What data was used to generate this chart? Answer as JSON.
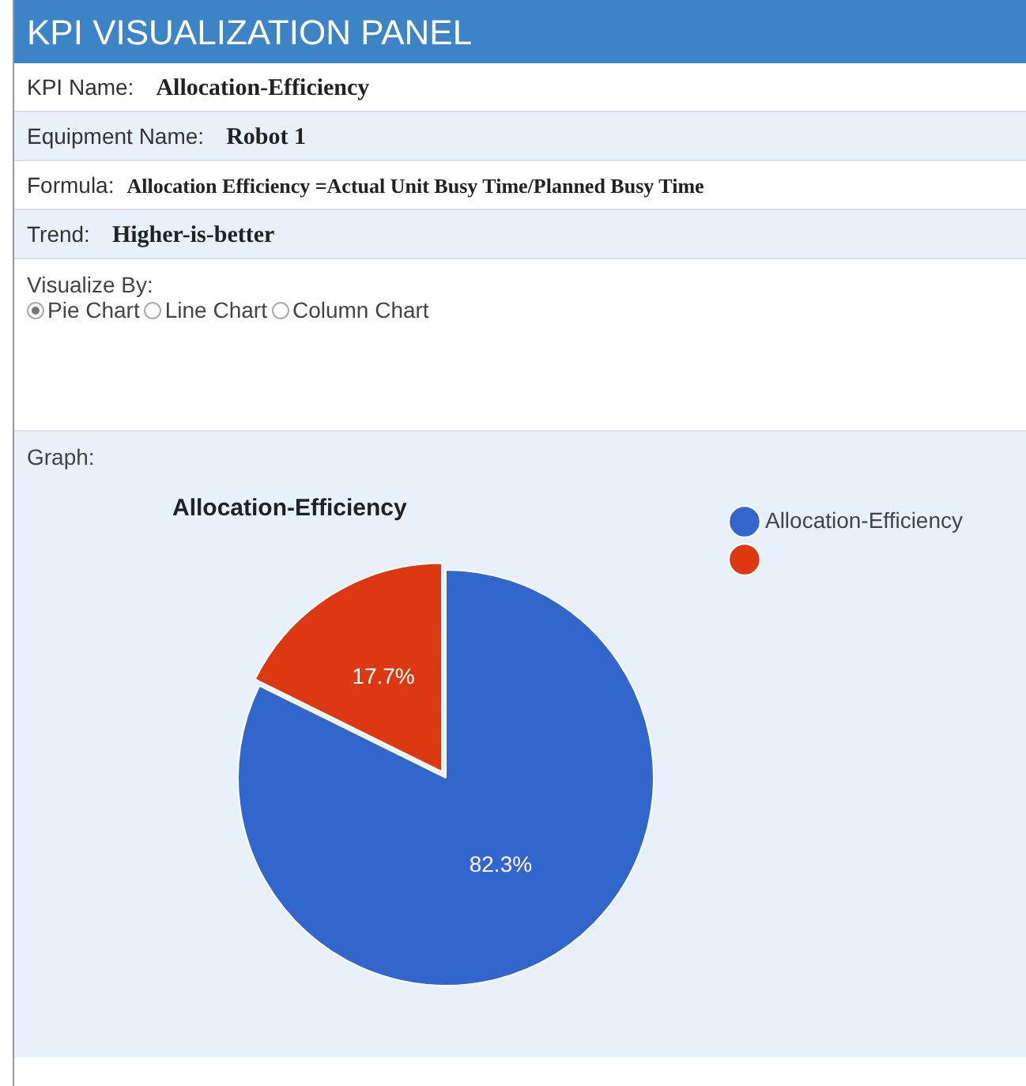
{
  "chart_data": {
    "type": "pie",
    "title": "Allocation-Efficiency",
    "categories": [
      "Allocation-Efficiency",
      null
    ],
    "values": [
      82.3,
      17.7
    ],
    "colors": [
      "#3366cc",
      "#dc3912"
    ],
    "value_labels": [
      "82.3%",
      "17.7%"
    ],
    "legend": "right",
    "annotations": [
      "KPI VISUALIZATION PANEL",
      "KPI Name:",
      "Allocation-Efficiency",
      "Equipment Name:",
      "Robot 1",
      "Formula:",
      "Allocation Efficiency =Actual Unit Busy Time/Planned Busy Time",
      "Trend:",
      "Higher-is-better",
      "Visualize By:",
      "Pie Chart",
      "Line Chart",
      "Column Chart",
      "Graph:"
    ]
  }
}
